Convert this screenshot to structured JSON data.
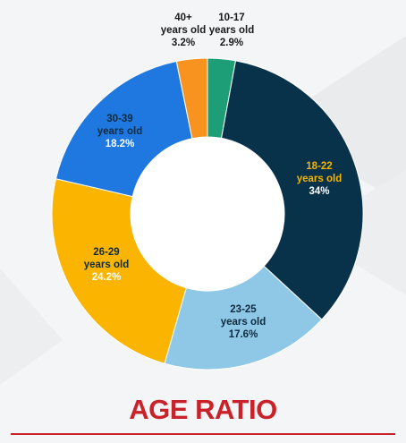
{
  "page": {
    "title": "AGE RATIO"
  },
  "colors": {
    "accent": "#c8222b",
    "background": "#f4f5f6"
  },
  "chart_data": {
    "type": "pie",
    "subtype": "donut",
    "title": "AGE RATIO",
    "slices": [
      {
        "label": "10-17",
        "sub": "years old",
        "pct_text": "2.9%",
        "value": 2.9,
        "color": "#1e9e77",
        "text_color": "#1a1a1a",
        "pct_color": "#1a1a1a"
      },
      {
        "label": "18-22",
        "sub": "years old",
        "pct_text": "34%",
        "value": 34,
        "color": "#08314a",
        "text_color": "#f4b400",
        "pct_color": "#ffffff"
      },
      {
        "label": "23-25",
        "sub": "years old",
        "pct_text": "17.6%",
        "value": 17.6,
        "color": "#8ec8e6",
        "text_color": "#0f2a3d",
        "pct_color": "#0f2a3d"
      },
      {
        "label": "26-29",
        "sub": "years old",
        "pct_text": "24.2%",
        "value": 24.2,
        "color": "#fbb400",
        "text_color": "#0f2a3d",
        "pct_color": "#ffffff"
      },
      {
        "label": "30-39",
        "sub": "years old",
        "pct_text": "18.2%",
        "value": 18.2,
        "color": "#1f78e0",
        "text_color": "#0f2a3d",
        "pct_color": "#ffffff"
      },
      {
        "label": "40+",
        "sub": "years old",
        "pct_text": "3.2%",
        "value": 3.2,
        "color": "#f7931e",
        "text_color": "#1a1a1a",
        "pct_color": "#1a1a1a"
      }
    ]
  }
}
